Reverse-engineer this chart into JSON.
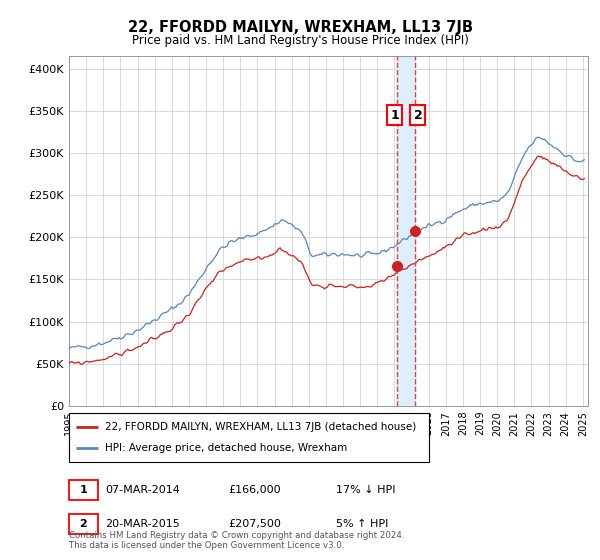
{
  "title": "22, FFORDD MAILYN, WREXHAM, LL13 7JB",
  "subtitle": "Price paid vs. HM Land Registry's House Price Index (HPI)",
  "ylabel_ticks": [
    "£0",
    "£50K",
    "£100K",
    "£150K",
    "£200K",
    "£250K",
    "£300K",
    "£350K",
    "£400K"
  ],
  "ytick_values": [
    0,
    50000,
    100000,
    150000,
    200000,
    250000,
    300000,
    350000,
    400000
  ],
  "ylim": [
    0,
    415000
  ],
  "xlim_start": 1995.0,
  "xlim_end": 2025.3,
  "vline1_x": 2014.17,
  "vline2_x": 2015.22,
  "point1_x": 2014.17,
  "point1_y": 166000,
  "point2_x": 2015.22,
  "point2_y": 207500,
  "hpi_color": "#5588bb",
  "price_color": "#cc2222",
  "vline_color": "#dd4444",
  "shade_color": "#ddeeff",
  "grid_color": "#cccccc",
  "background_color": "#ffffff",
  "footer_text": "Contains HM Land Registry data © Crown copyright and database right 2024.\nThis data is licensed under the Open Government Licence v3.0.",
  "legend_line1": "22, FFORDD MAILYN, WREXHAM, LL13 7JB (detached house)",
  "legend_line2": "HPI: Average price, detached house, Wrexham",
  "row1_num": "1",
  "row1_date": "07-MAR-2014",
  "row1_price": "£166,000",
  "row1_hpi": "17% ↓ HPI",
  "row2_num": "2",
  "row2_date": "20-MAR-2015",
  "row2_price": "£207,500",
  "row2_hpi": "5% ↑ HPI"
}
